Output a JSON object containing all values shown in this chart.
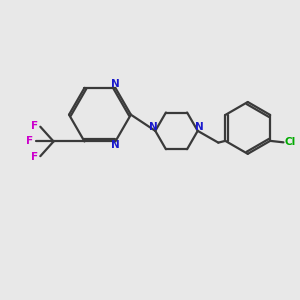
{
  "bg_color": "#e8e8e8",
  "bond_color": "#3a3a3a",
  "n_color": "#1a1acc",
  "f_color": "#cc00cc",
  "cl_color": "#00aa00",
  "line_width": 1.6,
  "figsize": [
    3.0,
    3.0
  ],
  "dpi": 100,
  "xlim": [
    0,
    10
  ],
  "ylim": [
    0,
    10
  ]
}
